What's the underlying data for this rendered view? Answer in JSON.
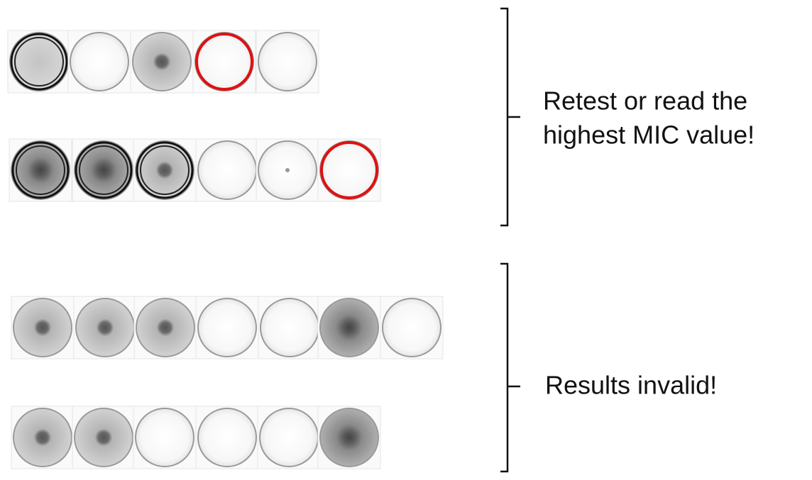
{
  "groups": [
    {
      "label_lines": [
        "Retest or read the",
        "highest MIC value!"
      ]
    },
    {
      "label_lines": [
        "Results invalid!"
      ]
    }
  ]
}
